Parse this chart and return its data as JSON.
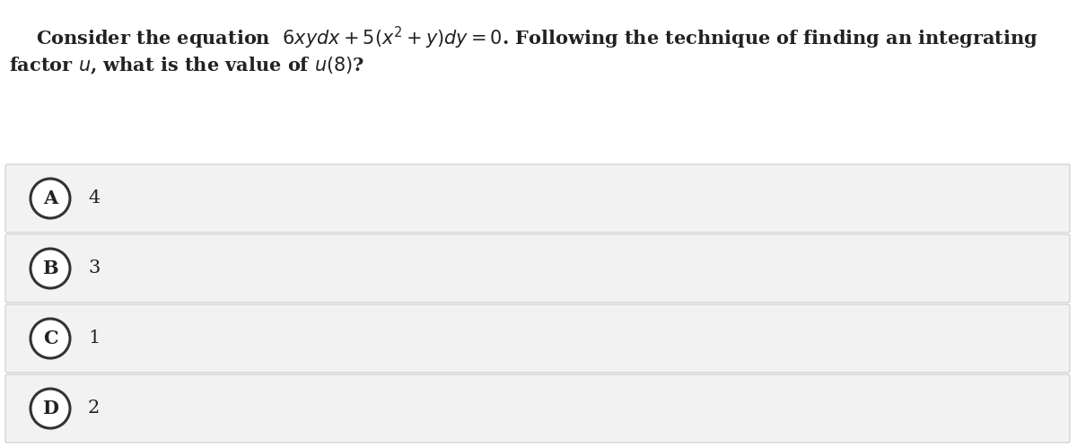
{
  "background_color": "#ffffff",
  "question_line1": "Consider the equation  $6xydx + 5(x^2 + y)dy = 0$. Following the technique of finding an integrating",
  "question_line2": "factor $u$, what is the value of $u(8)$?",
  "options": [
    {
      "label": "A",
      "value": "4"
    },
    {
      "label": "B",
      "value": "3"
    },
    {
      "label": "C",
      "value": "1"
    },
    {
      "label": "D",
      "value": "2"
    }
  ],
  "option_bg_color": "#f2f2f2",
  "option_border_color": "#cccccc",
  "text_color": "#222222",
  "circle_edge_color": "#333333",
  "font_size_question": 15,
  "font_size_option_label": 14,
  "font_size_option_value": 14,
  "fig_width": 12.0,
  "fig_height": 4.99
}
